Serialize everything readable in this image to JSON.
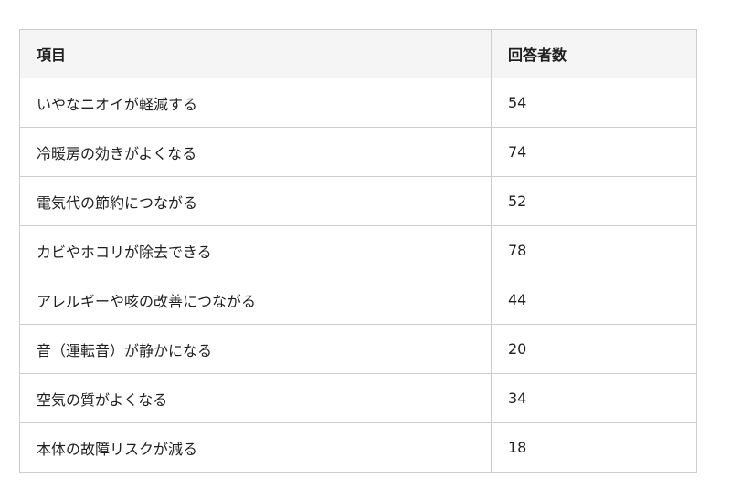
{
  "colors": {
    "page_bg": "#ffffff",
    "header_bg": "#f5f5f6",
    "row_bg": "#ffffff",
    "border": "#cdcdcd",
    "text": "#1f1f1f"
  },
  "table": {
    "headers": {
      "item": "項目",
      "count": "回答者数"
    },
    "rows": [
      {
        "item": "いやなニオイが軽減する",
        "count": "54"
      },
      {
        "item": "冷暖房の効きがよくなる",
        "count": "74"
      },
      {
        "item": "電気代の節約につながる",
        "count": "52"
      },
      {
        "item": "カビやホコリが除去できる",
        "count": "78"
      },
      {
        "item": "アレルギーや咳の改善につながる",
        "count": "44"
      },
      {
        "item": "音（運転音）が静かになる",
        "count": "20"
      },
      {
        "item": "空気の質がよくなる",
        "count": "34"
      },
      {
        "item": "本体の故障リスクが減る",
        "count": "18"
      }
    ]
  },
  "chart_data": {
    "type": "table",
    "columns": [
      "項目",
      "回答者数"
    ],
    "rows": [
      [
        "いやなニオイが軽減する",
        54
      ],
      [
        "冷暖房の効きがよくなる",
        74
      ],
      [
        "電気代の節約につながる",
        52
      ],
      [
        "カビやホコリが除去できる",
        78
      ],
      [
        "アレルギーや咳の改善につながる",
        44
      ],
      [
        "音（運転音）が静かになる",
        20
      ],
      [
        "空気の質がよくなる",
        34
      ],
      [
        "本体の故障リスクが減る",
        18
      ]
    ]
  }
}
